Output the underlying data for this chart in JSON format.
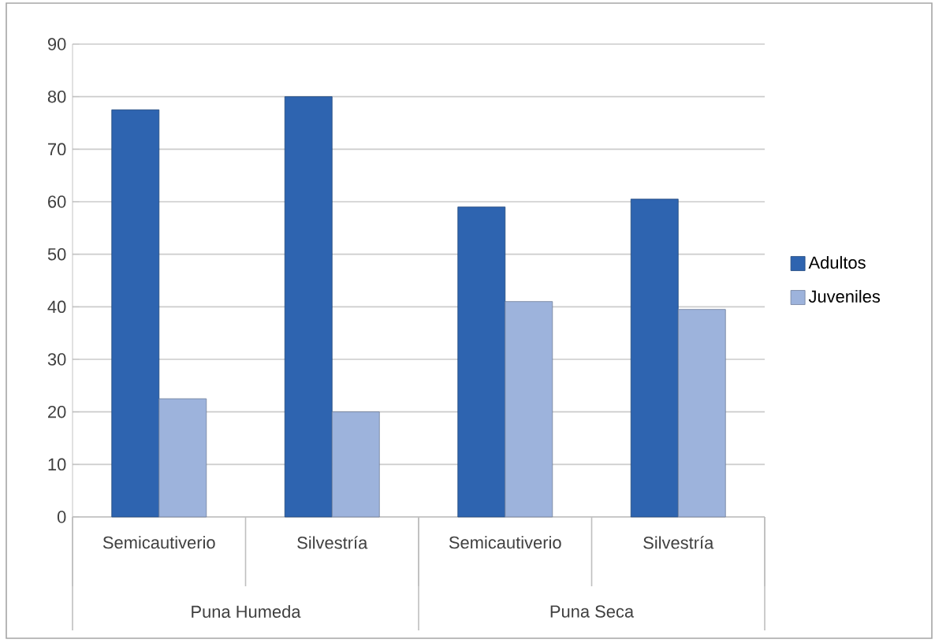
{
  "chart_data": {
    "type": "bar",
    "categories": [
      "Semicautiverio",
      "Silvestría",
      "Semicautiverio",
      "Silvestría"
    ],
    "series": [
      {
        "name": "Adultos",
        "color": "#2e64b0",
        "values": [
          77.5,
          80,
          59,
          60.5
        ]
      },
      {
        "name": "Juveniles",
        "color": "#9db3dc",
        "values": [
          22.5,
          20,
          41,
          39.5
        ]
      }
    ],
    "annotations": [
      "Puna Humeda",
      "Puna Seca"
    ],
    "ylim": [
      0,
      90
    ],
    "yticks": [
      0,
      10,
      20,
      30,
      40,
      50,
      60,
      70,
      80,
      90
    ],
    "grid": "y",
    "legend": "right"
  }
}
